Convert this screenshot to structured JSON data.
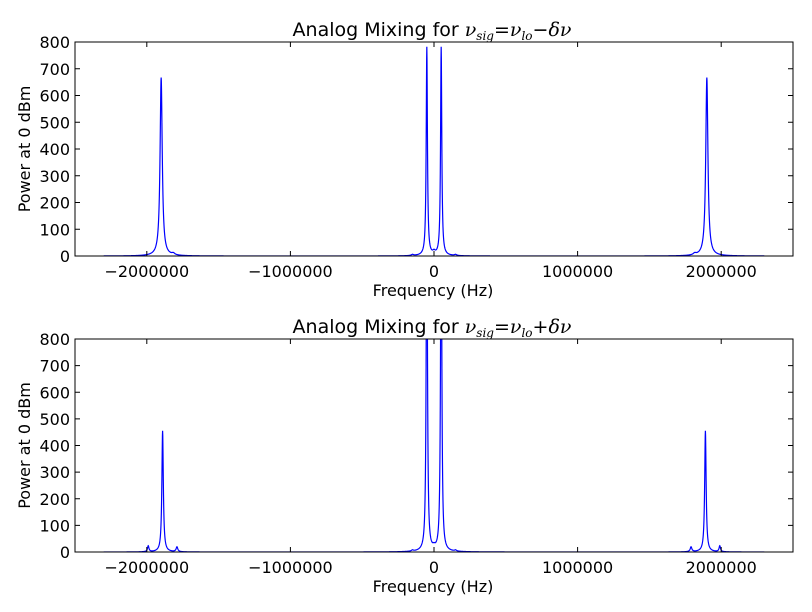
{
  "chart_data": [
    {
      "type": "line",
      "title_prefix": "Analog Mixing for ",
      "title_math": {
        "sym": "ν",
        "sub": "sig",
        "eq": "=",
        "sym2": "ν",
        "sub2": "lo",
        "op": "−",
        "tail": "δν"
      },
      "xlabel": "Frequency (Hz)",
      "ylabel": "Power at 0 dBm",
      "xlim": [
        -2500000,
        2500000
      ],
      "ylim": [
        0,
        800
      ],
      "xticks": [
        -2000000,
        -1000000,
        0,
        1000000,
        2000000
      ],
      "xtick_labels": [
        "−2000000",
        "−1000000",
        "0",
        "1000000",
        "2000000"
      ],
      "yticks": [
        0,
        100,
        200,
        300,
        400,
        500,
        600,
        700,
        800
      ],
      "ytick_labels": [
        "0",
        "100",
        "200",
        "300",
        "400",
        "500",
        "600",
        "700",
        "800"
      ],
      "grid": false,
      "series": [
        {
          "color": "#0000ff",
          "x_range": [
            -2300000,
            2300000
          ],
          "peaks": [
            {
              "x": -1900000,
              "y": 667,
              "w": 9000
            },
            {
              "x": -1815000,
              "y": 6,
              "w": 12000
            },
            {
              "x": -150000,
              "y": 4,
              "w": 9000
            },
            {
              "x": -50000,
              "y": 780,
              "w": 5000
            },
            {
              "x": 0,
              "y": 10,
              "w": 10000
            },
            {
              "x": 50000,
              "y": 780,
              "w": 5000
            },
            {
              "x": 150000,
              "y": 4,
              "w": 9000
            },
            {
              "x": 1815000,
              "y": 6,
              "w": 12000
            },
            {
              "x": 1900000,
              "y": 667,
              "w": 9000
            }
          ]
        }
      ]
    },
    {
      "type": "line",
      "title_prefix": "Analog Mixing for ",
      "title_math": {
        "sym": "ν",
        "sub": "sig",
        "eq": "=",
        "sym2": "ν",
        "sub2": "lo",
        "op": "+",
        "tail": "δν"
      },
      "xlabel": "Frequency (Hz)",
      "ylabel": "Power at 0 dBm",
      "xlim": [
        -2500000,
        2500000
      ],
      "ylim": [
        0,
        800
      ],
      "xticks": [
        -2000000,
        -1000000,
        0,
        1000000,
        2000000
      ],
      "xtick_labels": [
        "−2000000",
        "−1000000",
        "0",
        "1000000",
        "2000000"
      ],
      "yticks": [
        0,
        100,
        200,
        300,
        400,
        500,
        600,
        700,
        800
      ],
      "ytick_labels": [
        "0",
        "100",
        "200",
        "300",
        "400",
        "500",
        "600",
        "700",
        "800"
      ],
      "grid": false,
      "series": [
        {
          "color": "#0000ff",
          "x_range": [
            -1100000,
            1100000
          ],
          "x_range_outer": [
            -2300000,
            2300000
          ],
          "peaks": [
            {
              "x": -1990000,
              "y": 22,
              "w": 6000
            },
            {
              "x": -1890000,
              "y": 455,
              "w": 6000
            },
            {
              "x": -1790000,
              "y": 18,
              "w": 7000
            },
            {
              "x": -150000,
              "y": 4,
              "w": 8000
            },
            {
              "x": -50000,
              "y": 1400,
              "w": 5000
            },
            {
              "x": 0,
              "y": 8,
              "w": 10000
            },
            {
              "x": 50000,
              "y": 1400,
              "w": 5000
            },
            {
              "x": 150000,
              "y": 4,
              "w": 8000
            },
            {
              "x": 1790000,
              "y": 18,
              "w": 7000
            },
            {
              "x": 1890000,
              "y": 455,
              "w": 6000
            },
            {
              "x": 1990000,
              "y": 22,
              "w": 6000
            }
          ]
        }
      ]
    }
  ]
}
